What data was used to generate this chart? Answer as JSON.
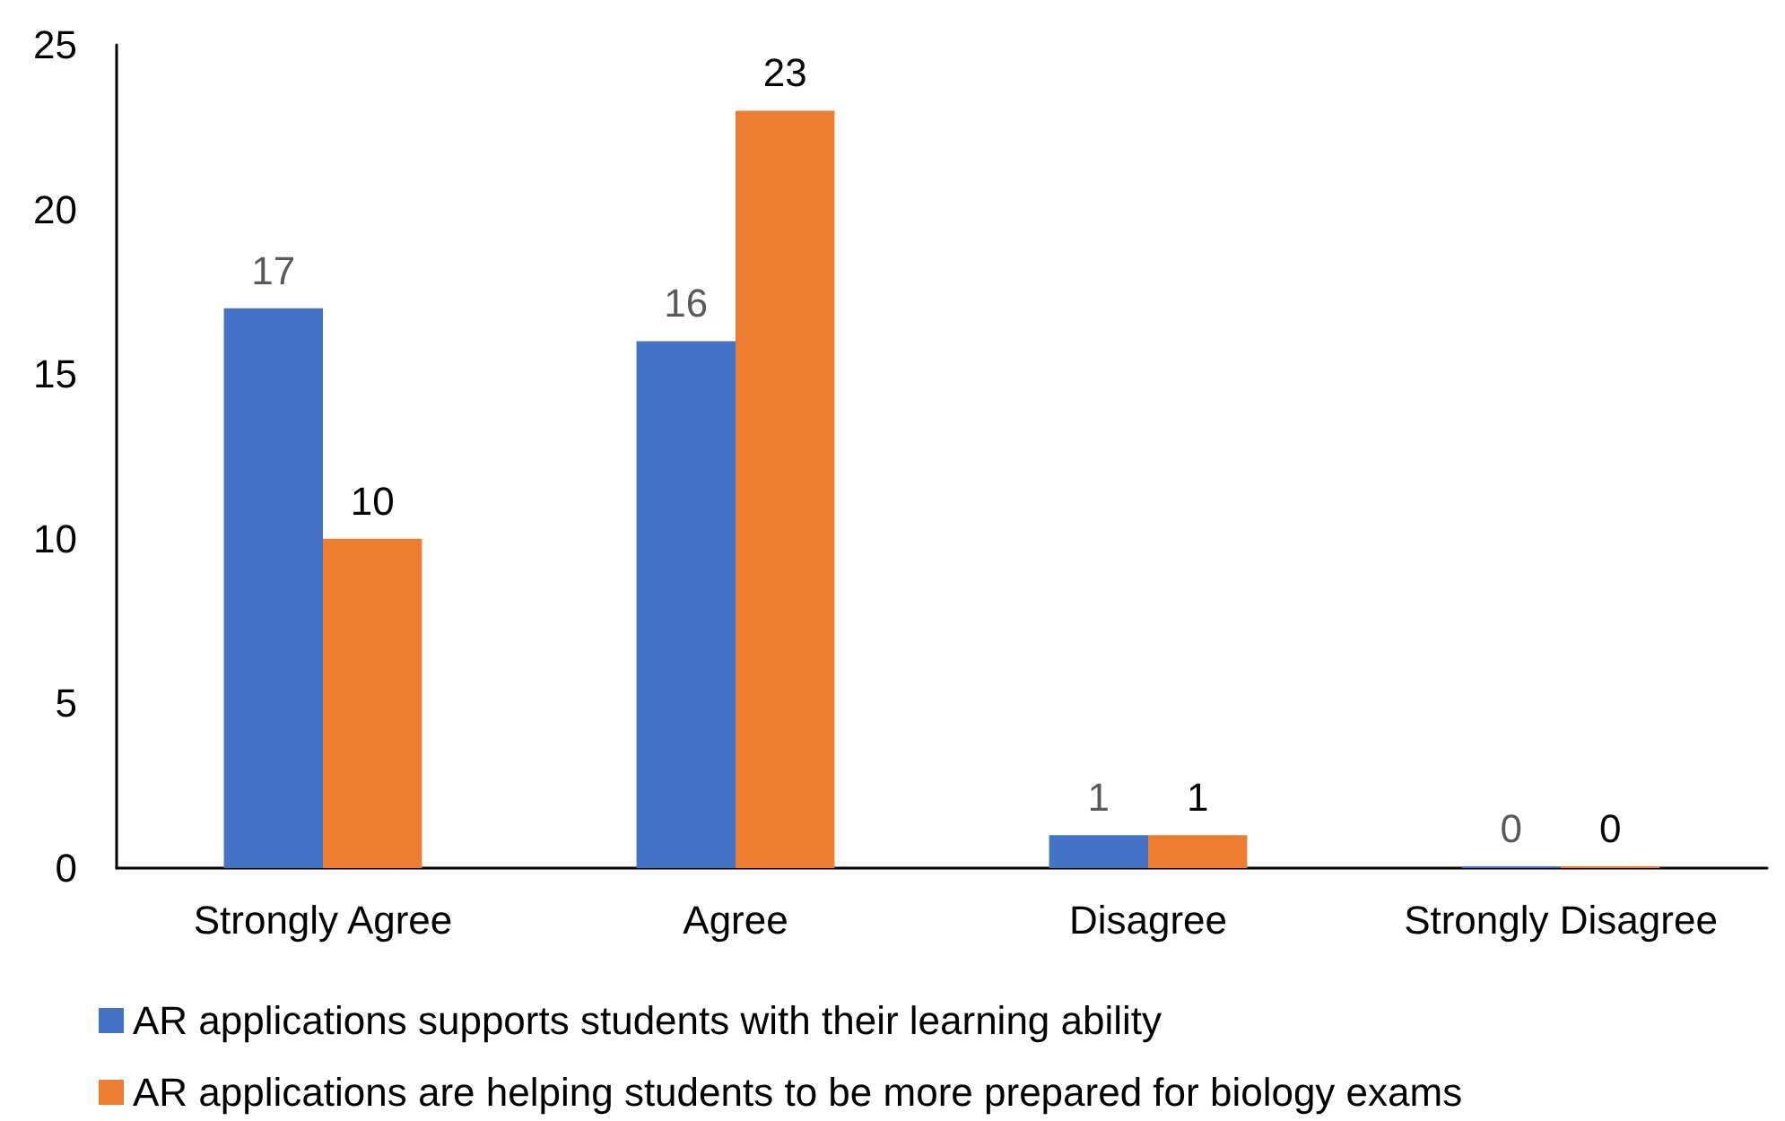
{
  "chart_data": {
    "type": "bar",
    "categories": [
      "Strongly Agree",
      "Agree",
      "Disagree",
      "Strongly Disagree"
    ],
    "series": [
      {
        "name": "AR applications supports students with their learning ability",
        "color": "#4472c4",
        "values": [
          17,
          16,
          1,
          0
        ]
      },
      {
        "name": "AR applications are helping students to be more prepared for biology exams",
        "color": "#ed7d31",
        "values": [
          10,
          23,
          1,
          0
        ]
      }
    ],
    "ylim": [
      0,
      25
    ],
    "yticks": [
      0,
      5,
      10,
      15,
      20,
      25
    ],
    "grid": false,
    "legend": "bottom",
    "data_labels": true
  }
}
